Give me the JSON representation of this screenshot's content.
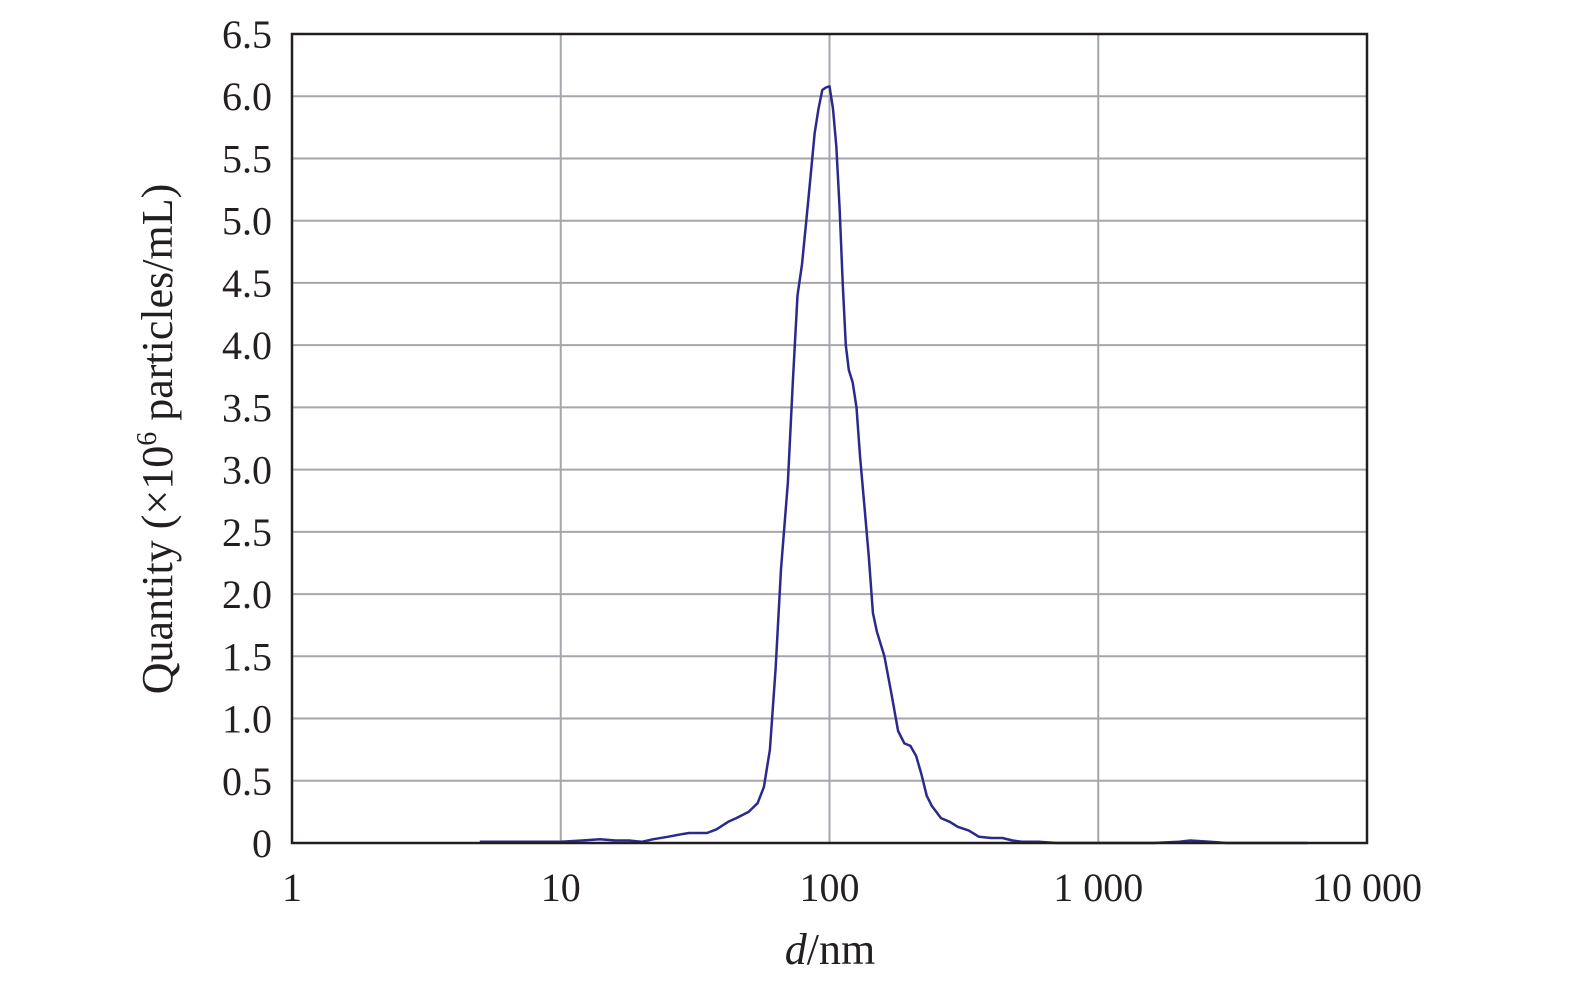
{
  "chart_data": {
    "type": "line",
    "title": "",
    "xlabel_italic": "d",
    "xlabel_rest": "/nm",
    "ylabel_main": "Quantity (×10",
    "ylabel_sup": "6",
    "ylabel_end": " particles/mL)",
    "x_scale": "log",
    "xlim": [
      1,
      10000
    ],
    "ylim": [
      0,
      6.5
    ],
    "x_ticks": [
      {
        "value": 1,
        "label": "1"
      },
      {
        "value": 10,
        "label": "10"
      },
      {
        "value": 100,
        "label": "100"
      },
      {
        "value": 1000,
        "label": "1 000"
      },
      {
        "value": 10000,
        "label": "10 000"
      }
    ],
    "y_ticks": [
      {
        "value": 0,
        "label": "0"
      },
      {
        "value": 0.5,
        "label": "0.5"
      },
      {
        "value": 1.0,
        "label": "1.0"
      },
      {
        "value": 1.5,
        "label": "1.5"
      },
      {
        "value": 2.0,
        "label": "2.0"
      },
      {
        "value": 2.5,
        "label": "2.5"
      },
      {
        "value": 3.0,
        "label": "3.0"
      },
      {
        "value": 3.5,
        "label": "3.5"
      },
      {
        "value": 4.0,
        "label": "4.0"
      },
      {
        "value": 4.5,
        "label": "4.5"
      },
      {
        "value": 5.0,
        "label": "5.0"
      },
      {
        "value": 5.5,
        "label": "5.5"
      },
      {
        "value": 6.0,
        "label": "6.0"
      },
      {
        "value": 6.5,
        "label": "6.5"
      }
    ],
    "grid": {
      "horizontal": true,
      "vertical": true
    },
    "colors": {
      "series": "#2b2a8c",
      "grid": "#a6a6ad",
      "frame": "#231f20",
      "text": "#231f20"
    },
    "series": [
      {
        "x": [
          5,
          8,
          10,
          12,
          14,
          16,
          18,
          20,
          22,
          25,
          28,
          30,
          35,
          38,
          42,
          45,
          50,
          54,
          57,
          60,
          63,
          66,
          70,
          73,
          76,
          79,
          82,
          85,
          88,
          91,
          94,
          97,
          100,
          103,
          106,
          109,
          112,
          115,
          118,
          122,
          126,
          130,
          135,
          140,
          145,
          150,
          160,
          170,
          180,
          190,
          200,
          210,
          220,
          230,
          240,
          260,
          280,
          300,
          330,
          360,
          400,
          440,
          480,
          520,
          600,
          700,
          900,
          1200,
          1600,
          2000,
          2200,
          2600,
          3000,
          4000,
          6000
        ],
        "y": [
          0.01,
          0.01,
          0.01,
          0.02,
          0.03,
          0.02,
          0.02,
          0.01,
          0.03,
          0.05,
          0.07,
          0.08,
          0.08,
          0.11,
          0.17,
          0.2,
          0.25,
          0.32,
          0.45,
          0.75,
          1.4,
          2.2,
          2.9,
          3.7,
          4.4,
          4.65,
          5.0,
          5.35,
          5.7,
          5.9,
          6.05,
          6.07,
          6.08,
          5.9,
          5.6,
          5.1,
          4.5,
          4.0,
          3.8,
          3.7,
          3.5,
          3.1,
          2.7,
          2.3,
          1.85,
          1.7,
          1.5,
          1.2,
          0.9,
          0.8,
          0.78,
          0.7,
          0.55,
          0.38,
          0.3,
          0.2,
          0.17,
          0.13,
          0.1,
          0.05,
          0.04,
          0.04,
          0.02,
          0.01,
          0.01,
          0.0,
          0.0,
          0.0,
          0.0,
          0.01,
          0.02,
          0.01,
          0.0,
          0.0,
          0.0
        ]
      }
    ]
  }
}
